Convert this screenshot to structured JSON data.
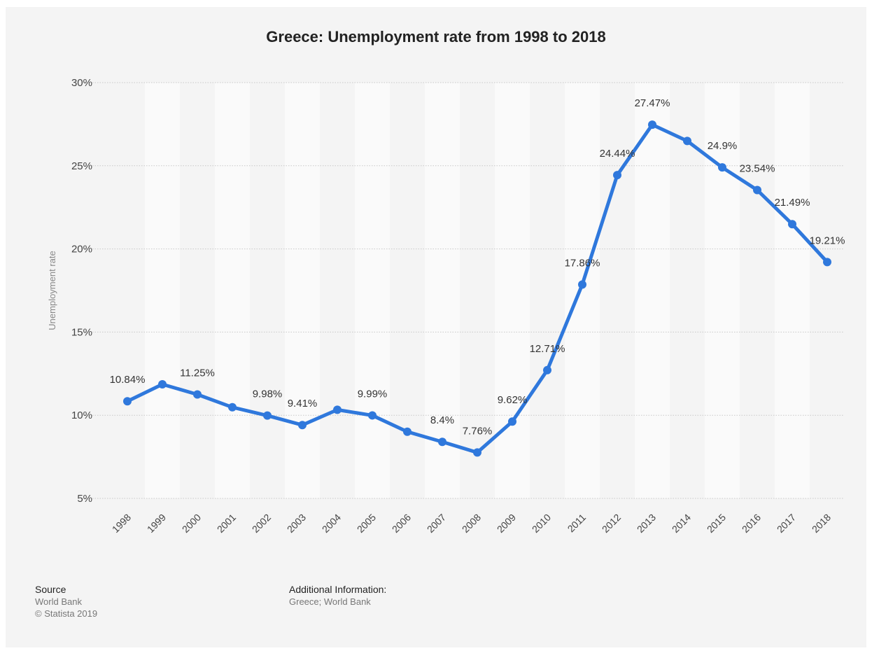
{
  "chart_data": {
    "type": "line",
    "title": "Greece: Unemployment rate from 1998 to 2018",
    "ylabel": "Unemployment rate",
    "xlabel": "",
    "ylim": [
      5,
      30
    ],
    "yticks": [
      5,
      10,
      15,
      20,
      25,
      30
    ],
    "ytick_labels": [
      "5%",
      "10%",
      "15%",
      "20%",
      "25%",
      "30%"
    ],
    "grid": true,
    "categories": [
      "1998",
      "1999",
      "2000",
      "2001",
      "2002",
      "2003",
      "2004",
      "2005",
      "2006",
      "2007",
      "2008",
      "2009",
      "2010",
      "2011",
      "2012",
      "2013",
      "2014",
      "2015",
      "2016",
      "2017",
      "2018"
    ],
    "series": [
      {
        "values": [
          10.84,
          11.86,
          11.25,
          10.48,
          9.98,
          9.41,
          10.33,
          9.99,
          9.01,
          8.4,
          7.76,
          9.62,
          12.71,
          17.86,
          24.44,
          27.47,
          26.49,
          24.9,
          23.54,
          21.49,
          19.21
        ],
        "labels": [
          "10.84%",
          "",
          "11.25%",
          "",
          "9.98%",
          "9.41%",
          "",
          "9.99%",
          "",
          "8.4%",
          "7.76%",
          "9.62%",
          "12.71%",
          "17.86%",
          "24.44%",
          "27.47%",
          "",
          "24.9%",
          "23.54%",
          "21.49%",
          "19.21%"
        ],
        "color": "#2f78dc"
      }
    ]
  },
  "footer": {
    "source_heading": "Source",
    "source_line1": "World Bank",
    "source_line2": "© Statista 2019",
    "info_heading": "Additional Information:",
    "info_line1": "Greece; World Bank"
  }
}
